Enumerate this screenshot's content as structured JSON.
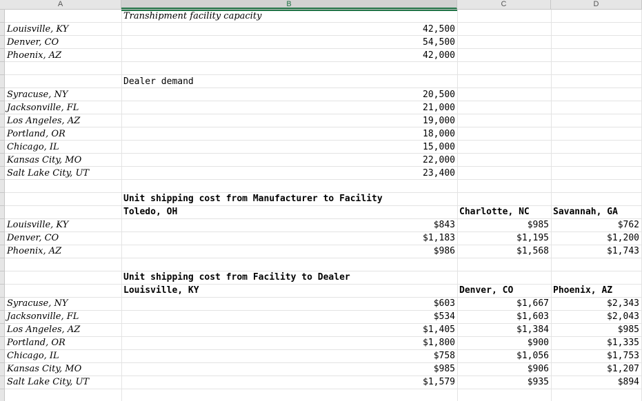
{
  "columns": [
    "A",
    "B",
    "C",
    "D"
  ],
  "capacity": {
    "title": "Transhipment facility capacity",
    "rows": [
      {
        "name": "Louisville, KY",
        "value": "42,500"
      },
      {
        "name": "Denver, CO",
        "value": "54,500"
      },
      {
        "name": "Phoenix, AZ",
        "value": "42,000"
      }
    ]
  },
  "demand": {
    "title": "Dealer demand",
    "rows": [
      {
        "name": "Syracuse, NY",
        "value": "20,500"
      },
      {
        "name": "Jacksonville, FL",
        "value": "21,000"
      },
      {
        "name": "Los Angeles, AZ",
        "value": "19,000"
      },
      {
        "name": "Portland, OR",
        "value": "18,000"
      },
      {
        "name": "Chicago, IL",
        "value": "15,000"
      },
      {
        "name": "Kansas City, MO",
        "value": "22,000"
      },
      {
        "name": "Salt Lake City, UT",
        "value": "23,400"
      }
    ]
  },
  "mfg_cost": {
    "title": "Unit shipping cost from Manufacturer to Facility",
    "headers": [
      "Toledo, OH",
      "Charlotte, NC",
      "Savannah, GA"
    ],
    "rows": [
      {
        "name": "Louisville, KY",
        "values": [
          "$843",
          "$985",
          "$762"
        ]
      },
      {
        "name": "Denver, CO",
        "values": [
          "$1,183",
          "$1,195",
          "$1,200"
        ]
      },
      {
        "name": "Phoenix, AZ",
        "values": [
          "$986",
          "$1,568",
          "$1,743"
        ]
      }
    ]
  },
  "dealer_cost": {
    "title": "Unit shipping cost from Facility to Dealer",
    "headers": [
      "Louisville, KY",
      "Denver, CO",
      "Phoenix, AZ"
    ],
    "rows": [
      {
        "name": "Syracuse, NY",
        "values": [
          "$603",
          "$1,667",
          "$2,343"
        ]
      },
      {
        "name": "Jacksonville, FL",
        "values": [
          "$534",
          "$1,603",
          "$2,043"
        ]
      },
      {
        "name": "Los Angeles, AZ",
        "values": [
          "$1,405",
          "$1,384",
          "$985"
        ]
      },
      {
        "name": "Portland, OR",
        "values": [
          "$1,800",
          "$900",
          "$1,335"
        ]
      },
      {
        "name": "Chicago, IL",
        "values": [
          "$758",
          "$1,056",
          "$1,753"
        ]
      },
      {
        "name": "Kansas City, MO",
        "values": [
          "$985",
          "$906",
          "$1,207"
        ]
      },
      {
        "name": "Salt Lake City, UT",
        "values": [
          "$1,579",
          "$935",
          "$894"
        ]
      }
    ]
  }
}
